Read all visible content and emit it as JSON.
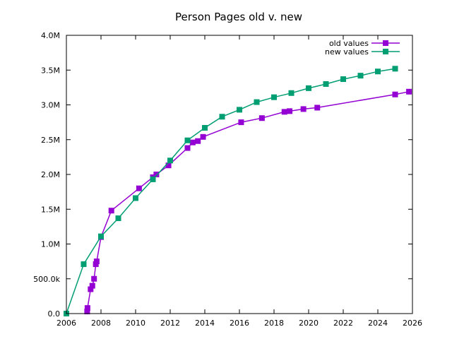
{
  "chart_data": {
    "type": "line",
    "title": "Person Pages old v. new",
    "xlabel": "",
    "ylabel": "",
    "xlim": [
      2006,
      2026
    ],
    "ylim": [
      0,
      4000000
    ],
    "x_ticks": [
      "2006",
      "2008",
      "2010",
      "2012",
      "2014",
      "2016",
      "2018",
      "2020",
      "2022",
      "2024",
      "2026"
    ],
    "y_ticks": [
      "0.0",
      "500.0k",
      "1.0M",
      "1.5M",
      "2.0M",
      "2.5M",
      "3.0M",
      "3.5M",
      "4.0M"
    ],
    "grid": false,
    "legend_position": "top-right",
    "series": [
      {
        "name": "old values",
        "color": "#9400d3",
        "marker": "square",
        "points": [
          [
            2007.2,
            30000
          ],
          [
            2007.22,
            80000
          ],
          [
            2007.4,
            350000
          ],
          [
            2007.5,
            400000
          ],
          [
            2007.6,
            500000
          ],
          [
            2007.7,
            710000
          ],
          [
            2007.75,
            750000
          ],
          [
            2008.0,
            1100000
          ],
          [
            2008.6,
            1480000
          ],
          [
            2010.2,
            1800000
          ],
          [
            2011.0,
            1960000
          ],
          [
            2011.2,
            2000000
          ],
          [
            2011.9,
            2130000
          ],
          [
            2013.0,
            2380000
          ],
          [
            2013.3,
            2460000
          ],
          [
            2013.6,
            2480000
          ],
          [
            2013.9,
            2540000
          ],
          [
            2016.1,
            2750000
          ],
          [
            2017.3,
            2810000
          ],
          [
            2018.6,
            2900000
          ],
          [
            2018.9,
            2910000
          ],
          [
            2019.7,
            2940000
          ],
          [
            2020.5,
            2960000
          ],
          [
            2025.0,
            3150000
          ],
          [
            2025.8,
            3190000
          ]
        ]
      },
      {
        "name": "new values",
        "color": "#009e73",
        "marker": "square",
        "points": [
          [
            2006.0,
            0
          ],
          [
            2007.0,
            710000
          ],
          [
            2008.0,
            1110000
          ],
          [
            2009.0,
            1370000
          ],
          [
            2010.0,
            1660000
          ],
          [
            2011.0,
            1930000
          ],
          [
            2012.0,
            2200000
          ],
          [
            2013.0,
            2490000
          ],
          [
            2014.0,
            2670000
          ],
          [
            2015.0,
            2830000
          ],
          [
            2016.0,
            2930000
          ],
          [
            2017.0,
            3040000
          ],
          [
            2018.0,
            3110000
          ],
          [
            2019.0,
            3170000
          ],
          [
            2020.0,
            3240000
          ],
          [
            2021.0,
            3300000
          ],
          [
            2022.0,
            3370000
          ],
          [
            2023.0,
            3420000
          ],
          [
            2024.0,
            3480000
          ],
          [
            2025.0,
            3520000
          ]
        ]
      }
    ]
  }
}
